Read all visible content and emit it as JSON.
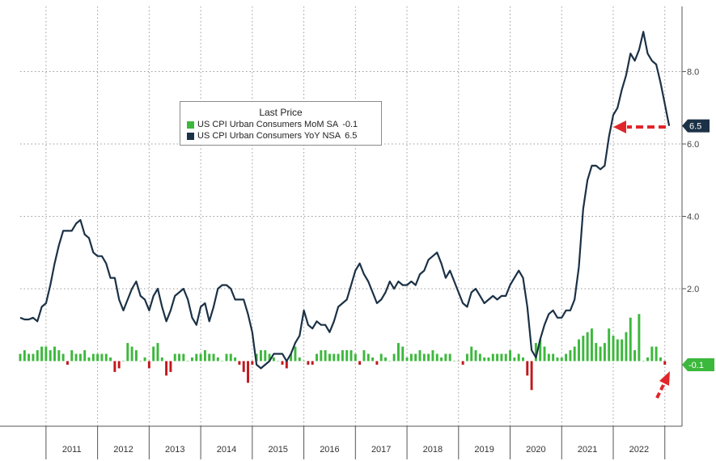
{
  "chart_data": {
    "type": "line+bar",
    "title": "",
    "legend": {
      "title": "Last Price",
      "placement": "top-center",
      "entries": [
        {
          "name": "US CPI Urban Consumers MoM SA",
          "last": "-0.1",
          "color": "#3cb83c"
        },
        {
          "name": "US CPI Urban Consumers YoY NSA",
          "last": "6.5",
          "color": "#1b3146"
        }
      ]
    },
    "y_axis": {
      "position": "right",
      "range": [
        -1.8,
        9.8
      ],
      "ticks": [
        2.0,
        4.0,
        6.0,
        8.0
      ],
      "tick_labels": [
        "2.0",
        "4.0",
        "6.0",
        "8.0"
      ]
    },
    "x_axis": {
      "range": [
        "2010-07",
        "2023-05"
      ],
      "year_labels": [
        "2011",
        "2012",
        "2013",
        "2014",
        "2015",
        "2016",
        "2017",
        "2018",
        "2019",
        "2020",
        "2021",
        "2022"
      ],
      "year_starts": [
        "2011-01",
        "2012-01",
        "2013-01",
        "2014-01",
        "2015-01",
        "2016-01",
        "2017-01",
        "2018-01",
        "2019-01",
        "2020-01",
        "2021-01",
        "2022-01",
        "2023-01"
      ]
    },
    "grid": true,
    "last_value_labels": [
      {
        "series": "US CPI Urban Consumers YoY NSA",
        "text": "6.5",
        "value": 6.5
      },
      {
        "series": "US CPI Urban Consumers MoM SA",
        "text": "-0.1",
        "value": -0.1
      }
    ],
    "series": [
      {
        "name": "US CPI Urban Consumers YoY NSA",
        "kind": "line",
        "color": "#1b3146",
        "start": "2010-07",
        "values": [
          1.2,
          1.15,
          1.15,
          1.2,
          1.1,
          1.5,
          1.6,
          2.1,
          2.7,
          3.2,
          3.6,
          3.6,
          3.6,
          3.8,
          3.9,
          3.5,
          3.4,
          3.0,
          2.9,
          2.9,
          2.7,
          2.3,
          2.3,
          1.7,
          1.4,
          1.7,
          2.0,
          2.2,
          1.8,
          1.7,
          1.4,
          1.8,
          2.0,
          1.5,
          1.1,
          1.4,
          1.8,
          1.9,
          2.0,
          1.7,
          1.2,
          1.0,
          1.5,
          1.6,
          1.1,
          1.5,
          2.0,
          2.1,
          2.1,
          2.0,
          1.7,
          1.7,
          1.7,
          1.3,
          0.8,
          -0.1,
          -0.2,
          -0.1,
          0.0,
          0.2,
          0.2,
          0.2,
          0.0,
          0.2,
          0.5,
          0.7,
          1.4,
          1.0,
          0.9,
          1.1,
          1.0,
          1.0,
          0.8,
          1.1,
          1.5,
          1.6,
          1.7,
          2.1,
          2.5,
          2.7,
          2.4,
          2.2,
          1.9,
          1.6,
          1.7,
          1.9,
          2.2,
          2.0,
          2.2,
          2.1,
          2.1,
          2.2,
          2.1,
          2.4,
          2.5,
          2.8,
          2.9,
          3.0,
          2.7,
          2.3,
          2.5,
          2.2,
          1.9,
          1.6,
          1.5,
          1.9,
          2.0,
          1.8,
          1.6,
          1.7,
          1.8,
          1.7,
          1.8,
          1.8,
          2.1,
          2.3,
          2.5,
          2.3,
          1.5,
          0.3,
          0.1,
          0.6,
          1.0,
          1.3,
          1.4,
          1.2,
          1.2,
          1.4,
          1.4,
          1.7,
          2.6,
          4.2,
          5.0,
          5.4,
          5.4,
          5.3,
          5.4,
          6.2,
          6.8,
          7.0,
          7.5,
          7.9,
          8.5,
          8.3,
          8.6,
          9.1,
          8.5,
          8.3,
          8.2,
          7.7,
          7.1,
          6.5
        ]
      },
      {
        "name": "US CPI Urban Consumers MoM SA",
        "kind": "bar",
        "color_positive": "#3cb83c",
        "color_negative": "#c0181c",
        "start": "2010-07",
        "values": [
          0.2,
          0.3,
          0.2,
          0.2,
          0.3,
          0.4,
          0.4,
          0.3,
          0.4,
          0.3,
          0.2,
          -0.1,
          0.3,
          0.2,
          0.2,
          0.3,
          0.1,
          0.2,
          0.2,
          0.2,
          0.2,
          0.1,
          -0.3,
          -0.2,
          0.0,
          0.5,
          0.4,
          0.3,
          0.0,
          0.1,
          -0.2,
          0.4,
          0.5,
          0.1,
          -0.4,
          -0.3,
          0.2,
          0.2,
          0.2,
          0.0,
          0.1,
          0.2,
          0.2,
          0.3,
          0.2,
          0.2,
          0.1,
          0.0,
          0.2,
          0.2,
          0.1,
          -0.1,
          -0.3,
          -0.6,
          -0.1,
          0.2,
          0.3,
          0.3,
          0.2,
          0.1,
          0.0,
          -0.1,
          -0.2,
          0.2,
          0.4,
          0.1,
          0.0,
          -0.1,
          -0.1,
          0.2,
          0.3,
          0.3,
          0.2,
          0.2,
          0.2,
          0.3,
          0.3,
          0.3,
          0.2,
          -0.1,
          0.3,
          0.2,
          0.1,
          -0.1,
          0.2,
          0.1,
          0.0,
          0.2,
          0.5,
          0.4,
          0.1,
          0.2,
          0.2,
          0.3,
          0.2,
          0.2,
          0.3,
          0.2,
          0.1,
          0.2,
          0.2,
          0.0,
          0.0,
          -0.1,
          0.2,
          0.4,
          0.3,
          0.2,
          0.1,
          0.1,
          0.2,
          0.2,
          0.2,
          0.2,
          0.3,
          0.1,
          0.2,
          0.1,
          -0.4,
          -0.8,
          0.5,
          0.6,
          0.4,
          0.2,
          0.2,
          0.1,
          0.1,
          0.2,
          0.3,
          0.4,
          0.6,
          0.7,
          0.8,
          0.9,
          0.5,
          0.4,
          0.5,
          0.9,
          0.7,
          0.6,
          0.6,
          0.8,
          1.2,
          0.3,
          1.3,
          0.0,
          0.1,
          0.4,
          0.4,
          0.1,
          -0.1
        ]
      }
    ]
  }
}
